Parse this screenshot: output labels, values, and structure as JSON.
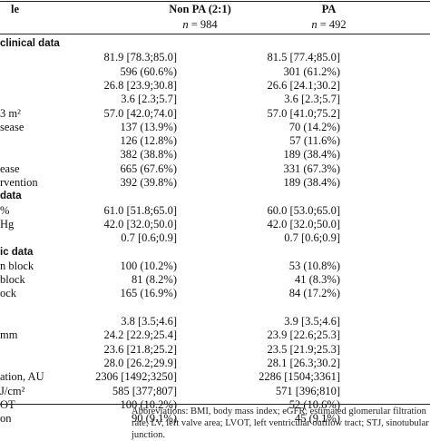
{
  "header": {
    "col1": "le",
    "col2": "Non PA (2:1)",
    "col3": "PA",
    "n_symbol": "n",
    "n_col2": " = 984",
    "n_col3": " = 492"
  },
  "rows": [
    {
      "type": "section",
      "label": "clinical data"
    },
    {
      "type": "data",
      "label": "",
      "v1": "81.9 [78.3;85.0]",
      "v2": "81.5 [77.4;85.0]"
    },
    {
      "type": "data",
      "label": "",
      "v1": "596 (60.6%)",
      "v2": "301 (61.2%)"
    },
    {
      "type": "data",
      "label": "",
      "v1": "26.8 [23.9;30.8]",
      "v2": "26.6 [24.1;30.2]"
    },
    {
      "type": "data",
      "label": "",
      "v1": "3.6 [2.3;5.7]",
      "v2": "3.6 [2.3;5.7]"
    },
    {
      "type": "data",
      "label": "3 m²",
      "v1": "57.0 [42.0;74.0]",
      "v2": "57.0 [41.0;75.2]"
    },
    {
      "type": "data",
      "label": "sease",
      "v1": "137 (13.9%)",
      "v2": "70 (14.2%)"
    },
    {
      "type": "data",
      "label": "",
      "v1": "126 (12.8%)",
      "v2": "57 (11.6%)"
    },
    {
      "type": "data",
      "label": "",
      "v1": "382 (38.8%)",
      "v2": "189 (38.4%)"
    },
    {
      "type": "data",
      "label": "ease",
      "v1": "665 (67.6%)",
      "v2": "331 (67.3%)"
    },
    {
      "type": "data",
      "label": "rvention",
      "v1": "392 (39.8%)",
      "v2": "189 (38.4%)"
    },
    {
      "type": "section",
      "label": "data"
    },
    {
      "type": "data",
      "label": "%",
      "v1": "61.0 [51.8;65.0]",
      "v2": "60.0 [53.0;65.0]"
    },
    {
      "type": "data",
      "label": "Hg",
      "v1": "42.0 [32.0;50.0]",
      "v2": "42.0 [32.0;50.0]"
    },
    {
      "type": "data",
      "label": "",
      "v1": "0.7 [0.6;0.9]",
      "v2": "0.7 [0.6;0.9]"
    },
    {
      "type": "section",
      "label": "ic data"
    },
    {
      "type": "data",
      "label": "n block",
      "v1": "100 (10.2%)",
      "v2": "53 (10.8%)"
    },
    {
      "type": "data",
      "label": "block",
      "v1": "81 (8.2%)",
      "v2": "41 (8.3%)"
    },
    {
      "type": "data",
      "label": "ock",
      "v1": "165 (16.9%)",
      "v2": "84 (17.2%)"
    },
    {
      "type": "spacer"
    },
    {
      "type": "data",
      "label": "",
      "v1": "3.8 [3.5;4.6]",
      "v2": "3.9 [3.5;4.6]"
    },
    {
      "type": "data",
      "label": "mm",
      "v1": "24.2 [22.9;25.4]",
      "v2": "23.9 [22.6;25.3]"
    },
    {
      "type": "data",
      "label": "",
      "v1": "23.6 [21.8;25.2]",
      "v2": "23.5 [21.9;25.3]"
    },
    {
      "type": "data",
      "label": "",
      "v1": "28.0 [26.2;29.9]",
      "v2": "28.1 [26.3;30.2]"
    },
    {
      "type": "data",
      "label": "ation, AU",
      "v1": "2306 [1492;3250]",
      "v2": "2286 [1504;3361]"
    },
    {
      "type": "data",
      "label": "J/cm²",
      "v1": "585 [377;807]",
      "v2": "571 [396;810]"
    },
    {
      "type": "data",
      "label": "OT",
      "v1": "100 (10.2%)",
      "v2": "52 (10.6%)"
    },
    {
      "type": "data",
      "label": "on",
      "v1": "90 (9.1%)",
      "v2": "45 (9.1%)"
    }
  ],
  "footnote": "Abbreviations: BMI, body mass index; eGFR, estimated glomerular filtration rate; LV, left valve area; LVOT, left ventricular outflow tract; STJ, sinotubular junction."
}
